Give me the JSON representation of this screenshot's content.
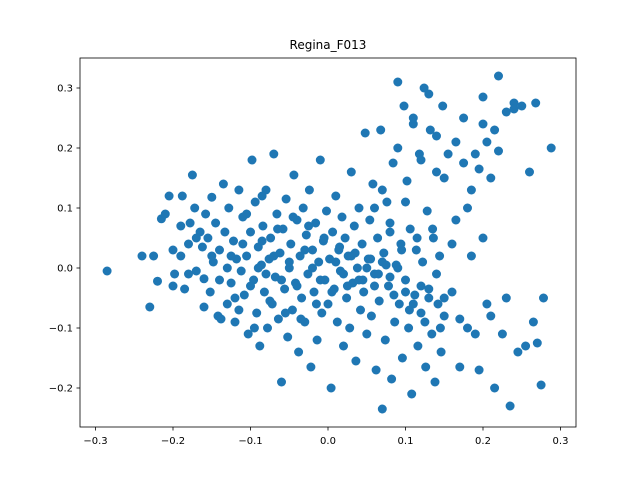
{
  "chart_data": {
    "type": "scatter",
    "title": "Regina_F013",
    "xlabel": "",
    "ylabel": "",
    "xlim": [
      -0.32,
      0.32
    ],
    "ylim": [
      -0.265,
      0.35
    ],
    "xticks": [
      -0.3,
      -0.2,
      -0.1,
      0.0,
      0.1,
      0.2,
      0.3
    ],
    "xtick_labels": [
      "−0.3",
      "−0.2",
      "−0.1",
      "0.0",
      "0.1",
      "0.2",
      "0.3"
    ],
    "yticks": [
      -0.2,
      -0.1,
      0.0,
      0.1,
      0.2,
      0.3
    ],
    "ytick_labels": [
      "−0.2",
      "−0.1",
      "0.0",
      "0.1",
      "0.2",
      "0.3"
    ],
    "grid": false,
    "color": "#1f77b4",
    "series": [
      {
        "points": [
          [
            -0.285,
            -0.005
          ],
          [
            -0.24,
            0.02
          ],
          [
            -0.23,
            -0.065
          ],
          [
            -0.225,
            0.02
          ],
          [
            -0.22,
            -0.022
          ],
          [
            -0.215,
            0.082
          ],
          [
            -0.21,
            0.09
          ],
          [
            -0.205,
            0.12
          ],
          [
            -0.2,
            0.03
          ],
          [
            -0.198,
            -0.01
          ],
          [
            -0.19,
            0.02
          ],
          [
            -0.188,
            0.12
          ],
          [
            -0.185,
            -0.035
          ],
          [
            -0.18,
            0.04
          ],
          [
            -0.178,
            0.075
          ],
          [
            -0.175,
            0.155
          ],
          [
            -0.172,
            0.1
          ],
          [
            -0.17,
            -0.005
          ],
          [
            -0.165,
            0.06
          ],
          [
            -0.162,
            0.035
          ],
          [
            -0.16,
            -0.018
          ],
          [
            -0.158,
            0.09
          ],
          [
            -0.155,
            0.05
          ],
          [
            -0.152,
            -0.04
          ],
          [
            -0.15,
            0.118
          ],
          [
            -0.148,
            0.01
          ],
          [
            -0.145,
            0.075
          ],
          [
            -0.142,
            -0.08
          ],
          [
            -0.14,
            0.03
          ],
          [
            -0.138,
            -0.085
          ],
          [
            -0.135,
            0.14
          ],
          [
            -0.133,
            0.06
          ],
          [
            -0.13,
            -0.06
          ],
          [
            -0.128,
            0.1
          ],
          [
            -0.125,
            -0.025
          ],
          [
            -0.122,
            0.045
          ],
          [
            -0.12,
            -0.09
          ],
          [
            -0.118,
            0.015
          ],
          [
            -0.115,
            0.13
          ],
          [
            -0.112,
            -0.005
          ],
          [
            -0.11,
            0.085
          ],
          [
            -0.108,
            -0.045
          ],
          [
            -0.105,
            0.02
          ],
          [
            -0.103,
            -0.11
          ],
          [
            -0.1,
            0.06
          ],
          [
            -0.098,
            0.18
          ],
          [
            -0.096,
            -0.02
          ],
          [
            -0.094,
            0.11
          ],
          [
            -0.092,
            -0.075
          ],
          [
            -0.09,
            0.035
          ],
          [
            -0.088,
            -0.13
          ],
          [
            -0.086,
            0.005
          ],
          [
            -0.084,
            0.07
          ],
          [
            -0.082,
            -0.04
          ],
          [
            -0.08,
            0.13
          ],
          [
            -0.078,
            -0.1
          ],
          [
            -0.076,
            0.015
          ],
          [
            -0.074,
            0.05
          ],
          [
            -0.072,
            -0.06
          ],
          [
            -0.07,
            0.19
          ],
          [
            -0.068,
            -0.015
          ],
          [
            -0.066,
            0.09
          ],
          [
            -0.064,
            -0.085
          ],
          [
            -0.062,
            0.025
          ],
          [
            -0.06,
            -0.19
          ],
          [
            -0.058,
            0.065
          ],
          [
            -0.056,
            -0.035
          ],
          [
            -0.054,
            0.115
          ],
          [
            -0.052,
            -0.115
          ],
          [
            -0.05,
            0.0
          ],
          [
            -0.048,
            0.04
          ],
          [
            -0.046,
            -0.07
          ],
          [
            -0.044,
            0.155
          ],
          [
            -0.042,
            -0.025
          ],
          [
            -0.04,
            0.08
          ],
          [
            -0.038,
            -0.14
          ],
          [
            -0.036,
            0.02
          ],
          [
            -0.034,
            -0.05
          ],
          [
            -0.032,
            0.1
          ],
          [
            -0.03,
            -0.09
          ],
          [
            -0.028,
            0.055
          ],
          [
            -0.026,
            -0.01
          ],
          [
            -0.024,
            0.13
          ],
          [
            -0.022,
            -0.165
          ],
          [
            -0.02,
            0.03
          ],
          [
            -0.018,
            -0.04
          ],
          [
            -0.016,
            0.075
          ],
          [
            -0.014,
            -0.12
          ],
          [
            -0.012,
            0.01
          ],
          [
            -0.01,
            0.18
          ],
          [
            -0.008,
            -0.075
          ],
          [
            -0.006,
            0.045
          ],
          [
            -0.004,
            -0.02
          ],
          [
            -0.002,
            0.095
          ],
          [
            0.0,
            -0.06
          ],
          [
            0.002,
            0.015
          ],
          [
            0.004,
            -0.2
          ],
          [
            0.006,
            0.06
          ],
          [
            0.008,
            -0.035
          ],
          [
            0.01,
            0.12
          ],
          [
            0.012,
            -0.09
          ],
          [
            0.014,
            0.03
          ],
          [
            0.016,
            -0.005
          ],
          [
            0.018,
            0.085
          ],
          [
            0.02,
            -0.13
          ],
          [
            0.022,
            0.05
          ],
          [
            0.024,
            -0.05
          ],
          [
            0.026,
            0.02
          ],
          [
            0.028,
            -0.1
          ],
          [
            0.03,
            0.16
          ],
          [
            0.032,
            -0.025
          ],
          [
            0.034,
            0.07
          ],
          [
            0.036,
            -0.155
          ],
          [
            0.038,
            0.0
          ],
          [
            0.04,
            0.1
          ],
          [
            0.042,
            -0.07
          ],
          [
            0.044,
            0.04
          ],
          [
            0.046,
            -0.04
          ],
          [
            0.048,
            0.225
          ],
          [
            0.05,
            -0.11
          ],
          [
            0.052,
            0.015
          ],
          [
            0.054,
            0.08
          ],
          [
            0.056,
            -0.08
          ],
          [
            0.058,
            0.14
          ],
          [
            0.06,
            -0.01
          ],
          [
            0.062,
            -0.17
          ],
          [
            0.064,
            0.05
          ],
          [
            0.066,
            -0.055
          ],
          [
            0.068,
            0.23
          ],
          [
            0.07,
            -0.235
          ],
          [
            0.072,
            0.025
          ],
          [
            0.074,
            -0.12
          ],
          [
            0.076,
            0.11
          ],
          [
            0.078,
            -0.03
          ],
          [
            0.08,
            0.06
          ],
          [
            0.082,
            -0.185
          ],
          [
            0.084,
            0.175
          ],
          [
            0.086,
            -0.09
          ],
          [
            0.088,
            0.005
          ],
          [
            0.09,
            0.31
          ],
          [
            0.092,
            -0.06
          ],
          [
            0.094,
            0.04
          ],
          [
            0.096,
            -0.15
          ],
          [
            0.098,
            0.27
          ],
          [
            0.1,
            -0.02
          ],
          [
            0.102,
            0.145
          ],
          [
            0.104,
            -0.1
          ],
          [
            0.106,
            0.065
          ],
          [
            0.108,
            -0.21
          ],
          [
            0.11,
            0.24
          ],
          [
            0.112,
            -0.045
          ],
          [
            0.114,
            0.03
          ],
          [
            0.116,
            -0.13
          ],
          [
            0.118,
            0.19
          ],
          [
            0.12,
            -0.075
          ],
          [
            0.122,
            0.01
          ],
          [
            0.124,
            0.3
          ],
          [
            0.126,
            -0.165
          ],
          [
            0.128,
            0.095
          ],
          [
            0.13,
            -0.035
          ],
          [
            0.132,
            0.23
          ],
          [
            0.134,
            -0.11
          ],
          [
            0.136,
            0.05
          ],
          [
            0.138,
            -0.19
          ],
          [
            0.14,
            0.16
          ],
          [
            0.142,
            -0.06
          ],
          [
            0.144,
            0.02
          ],
          [
            0.146,
            -0.14
          ],
          [
            0.148,
            0.27
          ],
          [
            0.15,
            -0.08
          ],
          [
            0.155,
            0.19
          ],
          [
            0.16,
            -0.04
          ],
          [
            0.165,
            0.08
          ],
          [
            0.17,
            -0.165
          ],
          [
            0.175,
            0.25
          ],
          [
            0.18,
            -0.1
          ],
          [
            0.185,
            0.02
          ],
          [
            0.19,
            0.19
          ],
          [
            0.195,
            -0.17
          ],
          [
            0.2,
            0.285
          ],
          [
            0.205,
            -0.06
          ],
          [
            0.21,
            0.15
          ],
          [
            0.215,
            -0.2
          ],
          [
            0.22,
            0.32
          ],
          [
            0.225,
            -0.11
          ],
          [
            0.23,
            0.26
          ],
          [
            0.235,
            -0.23
          ],
          [
            0.24,
            0.275
          ],
          [
            0.245,
            -0.14
          ],
          [
            0.25,
            0.27
          ],
          [
            0.255,
            -0.13
          ],
          [
            0.26,
            0.16
          ],
          [
            0.265,
            -0.09
          ],
          [
            0.268,
            0.275
          ],
          [
            0.27,
            -0.125
          ],
          [
            0.275,
            -0.195
          ],
          [
            0.278,
            -0.05
          ],
          [
            0.288,
            0.2
          ],
          [
            -0.1,
            -0.03
          ],
          [
            -0.09,
            0.0
          ],
          [
            -0.08,
            -0.01
          ],
          [
            -0.07,
            0.02
          ],
          [
            -0.06,
            -0.02
          ],
          [
            -0.05,
            0.01
          ],
          [
            -0.04,
            -0.03
          ],
          [
            -0.03,
            0.03
          ],
          [
            -0.02,
            0.0
          ],
          [
            -0.01,
            -0.02
          ],
          [
            0.01,
            0.01
          ],
          [
            0.02,
            -0.01
          ],
          [
            0.03,
            0.02
          ],
          [
            0.04,
            -0.02
          ],
          [
            0.05,
            0.0
          ],
          [
            0.06,
            -0.03
          ],
          [
            0.07,
            0.01
          ],
          [
            0.08,
            -0.015
          ],
          [
            0.09,
            0.0
          ],
          [
            0.1,
            -0.04
          ],
          [
            -0.11,
            0.04
          ],
          [
            -0.12,
            -0.05
          ],
          [
            -0.13,
            0.0
          ],
          [
            -0.14,
            -0.02
          ],
          [
            -0.15,
            0.02
          ],
          [
            0.11,
            -0.06
          ],
          [
            0.12,
            -0.03
          ],
          [
            0.13,
            -0.05
          ],
          [
            0.14,
            -0.01
          ],
          [
            0.15,
            -0.05
          ],
          [
            -0.085,
            0.045
          ],
          [
            -0.075,
            -0.055
          ],
          [
            -0.065,
            0.065
          ],
          [
            -0.055,
            -0.075
          ],
          [
            -0.045,
            0.085
          ],
          [
            -0.035,
            -0.085
          ],
          [
            -0.025,
            0.07
          ],
          [
            -0.015,
            -0.06
          ],
          [
            -0.005,
            0.05
          ],
          [
            0.005,
            -0.04
          ],
          [
            0.015,
            0.035
          ],
          [
            0.025,
            -0.03
          ],
          [
            0.035,
            0.025
          ],
          [
            0.045,
            -0.02
          ],
          [
            0.055,
            0.015
          ],
          [
            0.065,
            -0.01
          ],
          [
            0.075,
            0.005
          ],
          [
            0.085,
            -0.045
          ],
          [
            0.095,
            0.03
          ],
          [
            0.105,
            -0.07
          ],
          [
            0.115,
            0.05
          ],
          [
            0.125,
            -0.09
          ],
          [
            0.135,
            0.065
          ],
          [
            0.145,
            -0.1
          ],
          [
            0.16,
            0.04
          ],
          [
            0.17,
            -0.085
          ],
          [
            0.18,
            0.1
          ],
          [
            0.19,
            -0.11
          ],
          [
            0.2,
            0.05
          ],
          [
            0.21,
            -0.08
          ],
          [
            0.22,
            0.195
          ],
          [
            0.23,
            -0.05
          ],
          [
            0.24,
            0.265
          ],
          [
            0.2,
            0.24
          ],
          [
            0.215,
            0.23
          ],
          [
            -0.16,
            -0.065
          ],
          [
            -0.17,
            0.05
          ],
          [
            -0.18,
            -0.01
          ],
          [
            -0.19,
            0.07
          ],
          [
            -0.2,
            -0.03
          ],
          [
            -0.125,
            0.02
          ],
          [
            -0.115,
            -0.07
          ],
          [
            -0.105,
            0.09
          ],
          [
            -0.095,
            -0.1
          ],
          [
            -0.085,
            0.12
          ],
          [
            0.06,
            0.1
          ],
          [
            0.07,
            0.13
          ],
          [
            0.08,
            0.075
          ],
          [
            0.09,
            0.2
          ],
          [
            0.1,
            0.11
          ],
          [
            0.11,
            0.25
          ],
          [
            0.12,
            0.18
          ],
          [
            0.13,
            0.29
          ],
          [
            0.14,
            0.22
          ],
          [
            0.15,
            0.15
          ],
          [
            0.165,
            0.21
          ],
          [
            0.175,
            0.175
          ],
          [
            0.185,
            0.13
          ],
          [
            0.195,
            0.165
          ],
          [
            0.205,
            0.21
          ]
        ]
      }
    ]
  }
}
